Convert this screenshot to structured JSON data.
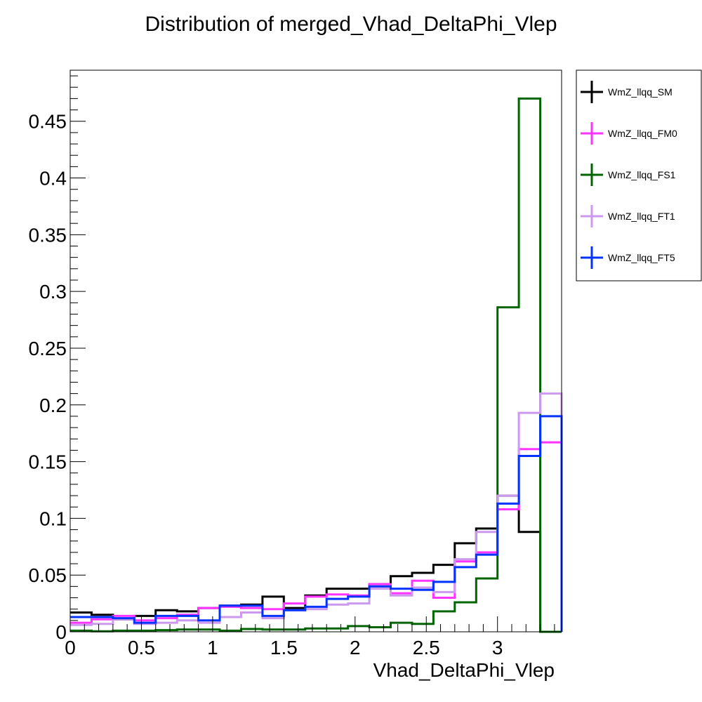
{
  "chart_data": {
    "type": "line",
    "title": "Distribution of merged_Vhad_DeltaPhi_Vlep",
    "xlabel": "Vhad_DeltaPhi_Vlep",
    "ylabel": "",
    "xlim": [
      0,
      3.45
    ],
    "ylim": [
      0,
      0.495
    ],
    "bin_width": 0.15,
    "x_ticks": [
      {
        "value": 0,
        "label": "0"
      },
      {
        "value": 0.5,
        "label": "0.5"
      },
      {
        "value": 1,
        "label": "1"
      },
      {
        "value": 1.5,
        "label": "1.5"
      },
      {
        "value": 2,
        "label": "2"
      },
      {
        "value": 2.5,
        "label": "2.5"
      },
      {
        "value": 3,
        "label": "3"
      }
    ],
    "y_ticks": [
      {
        "value": 0,
        "label": "0"
      },
      {
        "value": 0.05,
        "label": "0.05"
      },
      {
        "value": 0.1,
        "label": "0.1"
      },
      {
        "value": 0.15,
        "label": "0.15"
      },
      {
        "value": 0.2,
        "label": "0.2"
      },
      {
        "value": 0.25,
        "label": "0.25"
      },
      {
        "value": 0.3,
        "label": "0.3"
      },
      {
        "value": 0.35,
        "label": "0.35"
      },
      {
        "value": 0.4,
        "label": "0.4"
      },
      {
        "value": 0.45,
        "label": "0.45"
      }
    ],
    "grid": false,
    "legend_position": "top-right",
    "bin_edges": [
      0,
      0.15,
      0.3,
      0.45,
      0.6,
      0.75,
      0.9,
      1.05,
      1.2,
      1.35,
      1.5,
      1.65,
      1.8,
      1.95,
      2.1,
      2.25,
      2.4,
      2.55,
      2.7,
      2.85,
      3.0,
      3.15,
      3.3,
      3.45
    ],
    "series": [
      {
        "name": "WmZ_llqq_SM",
        "color": "#000000",
        "values": [
          0.017,
          0.015,
          0.011,
          0.014,
          0.019,
          0.018,
          0.021,
          0.023,
          0.024,
          0.031,
          0.021,
          0.032,
          0.038,
          0.038,
          0.042,
          0.049,
          0.052,
          0.059,
          0.078,
          0.091,
          0.12,
          0.088,
          0,
          0
        ]
      },
      {
        "name": "WmZ_llqq_FM0",
        "color": "#ff33ff",
        "values": [
          0.008,
          0.011,
          0.014,
          0.01,
          0.012,
          0.015,
          0.021,
          0.022,
          0.021,
          0.02,
          0.025,
          0.031,
          0.033,
          0.032,
          0.042,
          0.034,
          0.045,
          0.03,
          0.062,
          0.07,
          0.108,
          0.161,
          0.167,
          0
        ]
      },
      {
        "name": "WmZ_llqq_FS1",
        "color": "#006400",
        "values": [
          0.001,
          0.0005,
          0.001,
          0.001,
          0.0015,
          0.002,
          0.002,
          0.001,
          0.0025,
          0.002,
          0.002,
          0.003,
          0.003,
          0.005,
          0.004,
          0.008,
          0.007,
          0.018,
          0.026,
          0.047,
          0.286,
          0.47,
          0,
          0
        ]
      },
      {
        "name": "WmZ_llqq_FT1",
        "color": "#cc99ee",
        "values": [
          0.006,
          0.007,
          0.011,
          0.007,
          0.008,
          0.01,
          0.008,
          0.013,
          0.017,
          0.012,
          0.019,
          0.02,
          0.024,
          0.025,
          0.038,
          0.032,
          0.039,
          0.035,
          0.064,
          0.088,
          0.12,
          0.193,
          0.21,
          0
        ]
      },
      {
        "name": "WmZ_llqq_FT5",
        "color": "#0033ff",
        "values": [
          0.013,
          0.013,
          0.012,
          0.008,
          0.014,
          0.014,
          0.01,
          0.023,
          0.023,
          0.014,
          0.019,
          0.022,
          0.029,
          0.031,
          0.04,
          0.038,
          0.037,
          0.044,
          0.057,
          0.068,
          0.113,
          0.155,
          0.19,
          0
        ]
      }
    ]
  }
}
